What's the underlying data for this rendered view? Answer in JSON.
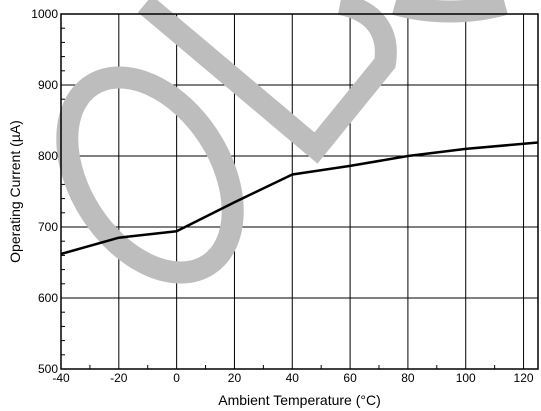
{
  "chart_data": {
    "type": "line",
    "xlabel": "Ambient Temperature (°C)",
    "ylabel": "Operating Current (µA)",
    "xlim": [
      -40,
      125
    ],
    "ylim": [
      500,
      1000
    ],
    "xticks": [
      -40,
      -20,
      0,
      20,
      40,
      60,
      80,
      100,
      120
    ],
    "yticks": [
      500,
      600,
      700,
      800,
      900,
      1000
    ],
    "grid": true,
    "series": [
      {
        "x": [
          -40,
          -20,
          0,
          20,
          40,
          60,
          80,
          100,
          125
        ],
        "y": [
          662,
          685,
          694,
          735,
          774,
          786,
          800,
          810,
          819
        ],
        "color": "#000000"
      }
    ],
    "watermark_color": "#bdbdbd"
  }
}
